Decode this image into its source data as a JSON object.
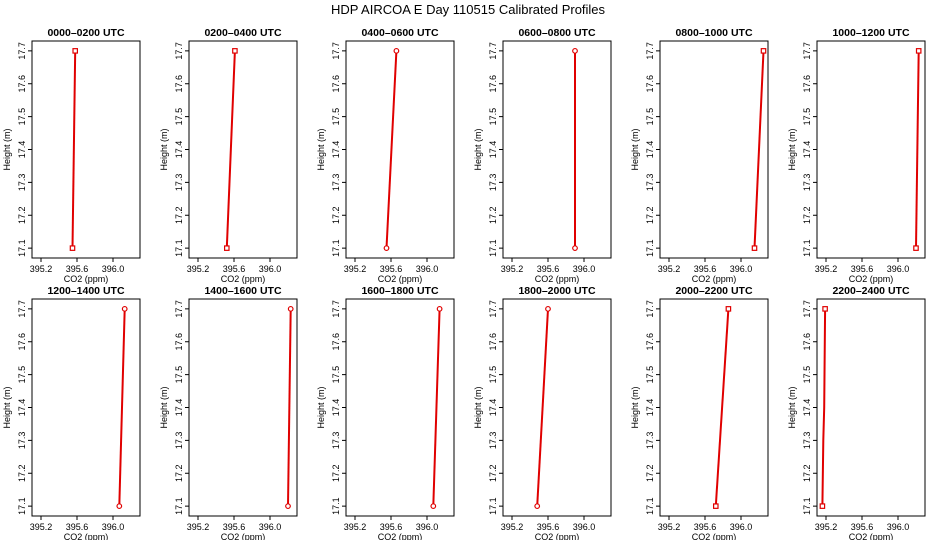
{
  "figure": {
    "title": "HDP AIRCOA E  Day 110515  Calibrated Profiles"
  },
  "chart_data": [
    {
      "type": "line",
      "title": "0000–0200 UTC",
      "xlabel": "CO2 (ppm)",
      "ylabel": "Height (m)",
      "xlim": [
        395.1,
        396.3
      ],
      "ylim": [
        17.07,
        17.73
      ],
      "xticks": [
        395.2,
        395.6,
        396.0
      ],
      "xtick_labels": [
        "395.2",
        "395.6",
        "396.0"
      ],
      "yticks": [
        17.1,
        17.2,
        17.3,
        17.4,
        17.5,
        17.6,
        17.7
      ],
      "ytick_labels": [
        "17.1",
        "17.2",
        "17.3",
        "17.4",
        "17.5",
        "17.6",
        "17.7"
      ],
      "grid": false,
      "marker": "open-square",
      "color": "#e00000",
      "series": [
        {
          "x": [
            395.55,
            395.58
          ],
          "y": [
            17.1,
            17.7
          ]
        }
      ]
    },
    {
      "type": "line",
      "title": "0200–0400 UTC",
      "xlabel": "CO2 (ppm)",
      "ylabel": "Height (m)",
      "xlim": [
        395.1,
        396.3
      ],
      "ylim": [
        17.07,
        17.73
      ],
      "xticks": [
        395.2,
        395.6,
        396.0
      ],
      "xtick_labels": [
        "395.2",
        "395.6",
        "396.0"
      ],
      "yticks": [
        17.1,
        17.2,
        17.3,
        17.4,
        17.5,
        17.6,
        17.7
      ],
      "ytick_labels": [
        "17.1",
        "17.2",
        "17.3",
        "17.4",
        "17.5",
        "17.6",
        "17.7"
      ],
      "grid": false,
      "marker": "open-square",
      "color": "#e00000",
      "series": [
        {
          "x": [
            395.52,
            395.61
          ],
          "y": [
            17.1,
            17.7
          ]
        }
      ]
    },
    {
      "type": "line",
      "title": "0400–0600 UTC",
      "xlabel": "CO2 (ppm)",
      "ylabel": "Height (m)",
      "xlim": [
        395.1,
        396.3
      ],
      "ylim": [
        17.07,
        17.73
      ],
      "xticks": [
        395.2,
        395.6,
        396.0
      ],
      "xtick_labels": [
        "395.2",
        "395.6",
        "396.0"
      ],
      "yticks": [
        17.1,
        17.2,
        17.3,
        17.4,
        17.5,
        17.6,
        17.7
      ],
      "ytick_labels": [
        "17.1",
        "17.2",
        "17.3",
        "17.4",
        "17.5",
        "17.6",
        "17.7"
      ],
      "grid": false,
      "marker": "open-circle",
      "color": "#e00000",
      "series": [
        {
          "x": [
            395.55,
            395.66
          ],
          "y": [
            17.1,
            17.7
          ]
        }
      ]
    },
    {
      "type": "line",
      "title": "0600–0800 UTC",
      "xlabel": "CO2 (ppm)",
      "ylabel": "Height (m)",
      "xlim": [
        395.1,
        396.3
      ],
      "ylim": [
        17.07,
        17.73
      ],
      "xticks": [
        395.2,
        395.6,
        396.0
      ],
      "xtick_labels": [
        "395.2",
        "395.6",
        "396.0"
      ],
      "yticks": [
        17.1,
        17.2,
        17.3,
        17.4,
        17.5,
        17.6,
        17.7
      ],
      "ytick_labels": [
        "17.1",
        "17.2",
        "17.3",
        "17.4",
        "17.5",
        "17.6",
        "17.7"
      ],
      "grid": false,
      "marker": "open-circle",
      "color": "#e00000",
      "series": [
        {
          "x": [
            395.9,
            395.9
          ],
          "y": [
            17.1,
            17.7
          ]
        }
      ]
    },
    {
      "type": "line",
      "title": "0800–1000 UTC",
      "xlabel": "CO2 (ppm)",
      "ylabel": "Height (m)",
      "xlim": [
        395.1,
        396.3
      ],
      "ylim": [
        17.07,
        17.73
      ],
      "xticks": [
        395.2,
        395.6,
        396.0
      ],
      "xtick_labels": [
        "395.2",
        "395.6",
        "396.0"
      ],
      "yticks": [
        17.1,
        17.2,
        17.3,
        17.4,
        17.5,
        17.6,
        17.7
      ],
      "ytick_labels": [
        "17.1",
        "17.2",
        "17.3",
        "17.4",
        "17.5",
        "17.6",
        "17.7"
      ],
      "grid": false,
      "marker": "open-square",
      "color": "#e00000",
      "series": [
        {
          "x": [
            396.15,
            396.25
          ],
          "y": [
            17.1,
            17.7
          ]
        }
      ]
    },
    {
      "type": "line",
      "title": "1000–1200 UTC",
      "xlabel": "CO2 (ppm)",
      "ylabel": "Height (m)",
      "xlim": [
        395.1,
        396.3
      ],
      "ylim": [
        17.07,
        17.73
      ],
      "xticks": [
        395.2,
        395.6,
        396.0
      ],
      "xtick_labels": [
        "395.2",
        "395.6",
        "396.0"
      ],
      "yticks": [
        17.1,
        17.2,
        17.3,
        17.4,
        17.5,
        17.6,
        17.7
      ],
      "ytick_labels": [
        "17.1",
        "17.2",
        "17.3",
        "17.4",
        "17.5",
        "17.6",
        "17.7"
      ],
      "grid": false,
      "marker": "open-square",
      "color": "#e00000",
      "series": [
        {
          "x": [
            396.2,
            396.23
          ],
          "y": [
            17.1,
            17.7
          ]
        }
      ]
    },
    {
      "type": "line",
      "title": "1200–1400 UTC",
      "xlabel": "CO2 (ppm)",
      "ylabel": "Height (m)",
      "xlim": [
        395.1,
        396.3
      ],
      "ylim": [
        17.07,
        17.73
      ],
      "xticks": [
        395.2,
        395.6,
        396.0
      ],
      "xtick_labels": [
        "395.2",
        "395.6",
        "396.0"
      ],
      "yticks": [
        17.1,
        17.2,
        17.3,
        17.4,
        17.5,
        17.6,
        17.7
      ],
      "ytick_labels": [
        "17.1",
        "17.2",
        "17.3",
        "17.4",
        "17.5",
        "17.6",
        "17.7"
      ],
      "grid": false,
      "marker": "open-circle",
      "color": "#e00000",
      "series": [
        {
          "x": [
            396.07,
            396.13
          ],
          "y": [
            17.1,
            17.7
          ]
        }
      ]
    },
    {
      "type": "line",
      "title": "1400–1600 UTC",
      "xlabel": "CO2 (ppm)",
      "ylabel": "Height (m)",
      "xlim": [
        395.1,
        396.3
      ],
      "ylim": [
        17.07,
        17.73
      ],
      "xticks": [
        395.2,
        395.6,
        396.0
      ],
      "xtick_labels": [
        "395.2",
        "395.6",
        "396.0"
      ],
      "yticks": [
        17.1,
        17.2,
        17.3,
        17.4,
        17.5,
        17.6,
        17.7
      ],
      "ytick_labels": [
        "17.1",
        "17.2",
        "17.3",
        "17.4",
        "17.5",
        "17.6",
        "17.7"
      ],
      "grid": false,
      "marker": "open-circle",
      "color": "#e00000",
      "series": [
        {
          "x": [
            396.2,
            396.23
          ],
          "y": [
            17.1,
            17.7
          ]
        }
      ]
    },
    {
      "type": "line",
      "title": "1600–1800 UTC",
      "xlabel": "CO2 (ppm)",
      "ylabel": "Height (m)",
      "xlim": [
        395.1,
        396.3
      ],
      "ylim": [
        17.07,
        17.73
      ],
      "xticks": [
        395.2,
        395.6,
        396.0
      ],
      "xtick_labels": [
        "395.2",
        "395.6",
        "396.0"
      ],
      "yticks": [
        17.1,
        17.2,
        17.3,
        17.4,
        17.5,
        17.6,
        17.7
      ],
      "ytick_labels": [
        "17.1",
        "17.2",
        "17.3",
        "17.4",
        "17.5",
        "17.6",
        "17.7"
      ],
      "grid": false,
      "marker": "open-circle",
      "color": "#e00000",
      "series": [
        {
          "x": [
            396.07,
            396.14
          ],
          "y": [
            17.1,
            17.7
          ]
        }
      ]
    },
    {
      "type": "line",
      "title": "1800–2000 UTC",
      "xlabel": "CO2 (ppm)",
      "ylabel": "Height (m)",
      "xlim": [
        395.1,
        396.3
      ],
      "ylim": [
        17.07,
        17.73
      ],
      "xticks": [
        395.2,
        395.6,
        396.0
      ],
      "xtick_labels": [
        "395.2",
        "395.6",
        "396.0"
      ],
      "yticks": [
        17.1,
        17.2,
        17.3,
        17.4,
        17.5,
        17.6,
        17.7
      ],
      "ytick_labels": [
        "17.1",
        "17.2",
        "17.3",
        "17.4",
        "17.5",
        "17.6",
        "17.7"
      ],
      "grid": false,
      "marker": "open-circle",
      "color": "#e00000",
      "series": [
        {
          "x": [
            395.48,
            395.6
          ],
          "y": [
            17.1,
            17.7
          ]
        }
      ]
    },
    {
      "type": "line",
      "title": "2000–2200 UTC",
      "xlabel": "CO2 (ppm)",
      "ylabel": "Height (m)",
      "xlim": [
        395.1,
        396.3
      ],
      "ylim": [
        17.07,
        17.73
      ],
      "xticks": [
        395.2,
        395.6,
        396.0
      ],
      "xtick_labels": [
        "395.2",
        "395.6",
        "396.0"
      ],
      "yticks": [
        17.1,
        17.2,
        17.3,
        17.4,
        17.5,
        17.6,
        17.7
      ],
      "ytick_labels": [
        "17.1",
        "17.2",
        "17.3",
        "17.4",
        "17.5",
        "17.6",
        "17.7"
      ],
      "grid": false,
      "marker": "open-square",
      "color": "#e00000",
      "series": [
        {
          "x": [
            395.72,
            395.86
          ],
          "y": [
            17.1,
            17.7
          ]
        }
      ]
    },
    {
      "type": "line",
      "title": "2200–2400 UTC",
      "xlabel": "CO2 (ppm)",
      "ylabel": "Height (m)",
      "xlim": [
        395.1,
        396.3
      ],
      "ylim": [
        17.07,
        17.73
      ],
      "xticks": [
        395.2,
        395.6,
        396.0
      ],
      "xtick_labels": [
        "395.2",
        "395.6",
        "396.0"
      ],
      "yticks": [
        17.1,
        17.2,
        17.3,
        17.4,
        17.5,
        17.6,
        17.7
      ],
      "ytick_labels": [
        "17.1",
        "17.2",
        "17.3",
        "17.4",
        "17.5",
        "17.6",
        "17.7"
      ],
      "grid": false,
      "marker": "open-square",
      "color": "#e00000",
      "series": [
        {
          "x": [
            395.16,
            395.17,
            395.18,
            395.19
          ],
          "y": [
            17.1,
            17.3,
            17.4,
            17.7
          ]
        }
      ]
    }
  ]
}
